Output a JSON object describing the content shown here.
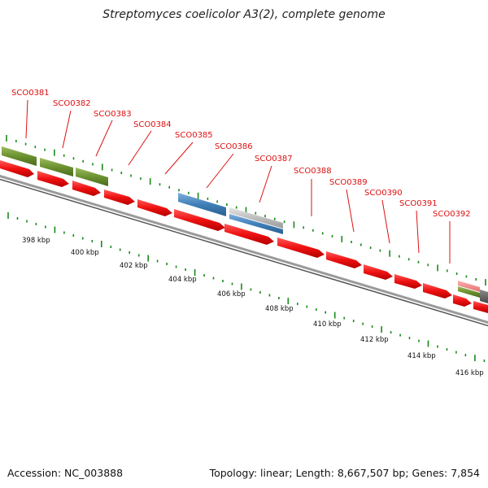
{
  "title": "Streptomyces coelicolor A3(2), complete genome",
  "footer": {
    "accession": "Accession: NC_003888",
    "summary": "Topology: linear; Length: 8,667,507 bp; Genes: 7,854"
  },
  "genes": [
    {
      "label": "SCO0381"
    },
    {
      "label": "SCO0382"
    },
    {
      "label": "SCO0383"
    },
    {
      "label": "SCO0384"
    },
    {
      "label": "SCO0385"
    },
    {
      "label": "SCO0386"
    },
    {
      "label": "SCO0387"
    },
    {
      "label": "SCO0388"
    },
    {
      "label": "SCO0389"
    },
    {
      "label": "SCO0390"
    },
    {
      "label": "SCO0391"
    },
    {
      "label": "SCO0392"
    }
  ],
  "scale_ticks": [
    "398 kbp",
    "400 kbp",
    "402 kbp",
    "404 kbp",
    "406 kbp",
    "408 kbp",
    "410 kbp",
    "412 kbp",
    "414 kbp",
    "416 kbp"
  ],
  "colors": {
    "gene_label": "#dd1111",
    "cds_arrow": "#ee1111",
    "feature_green": "#6b9130",
    "feature_blue": "#3f7fb8",
    "feature_grey": "#bdbdbd",
    "feature_pink": "#f08080",
    "backbone": "#808080",
    "tick": "#1a8a1a"
  }
}
